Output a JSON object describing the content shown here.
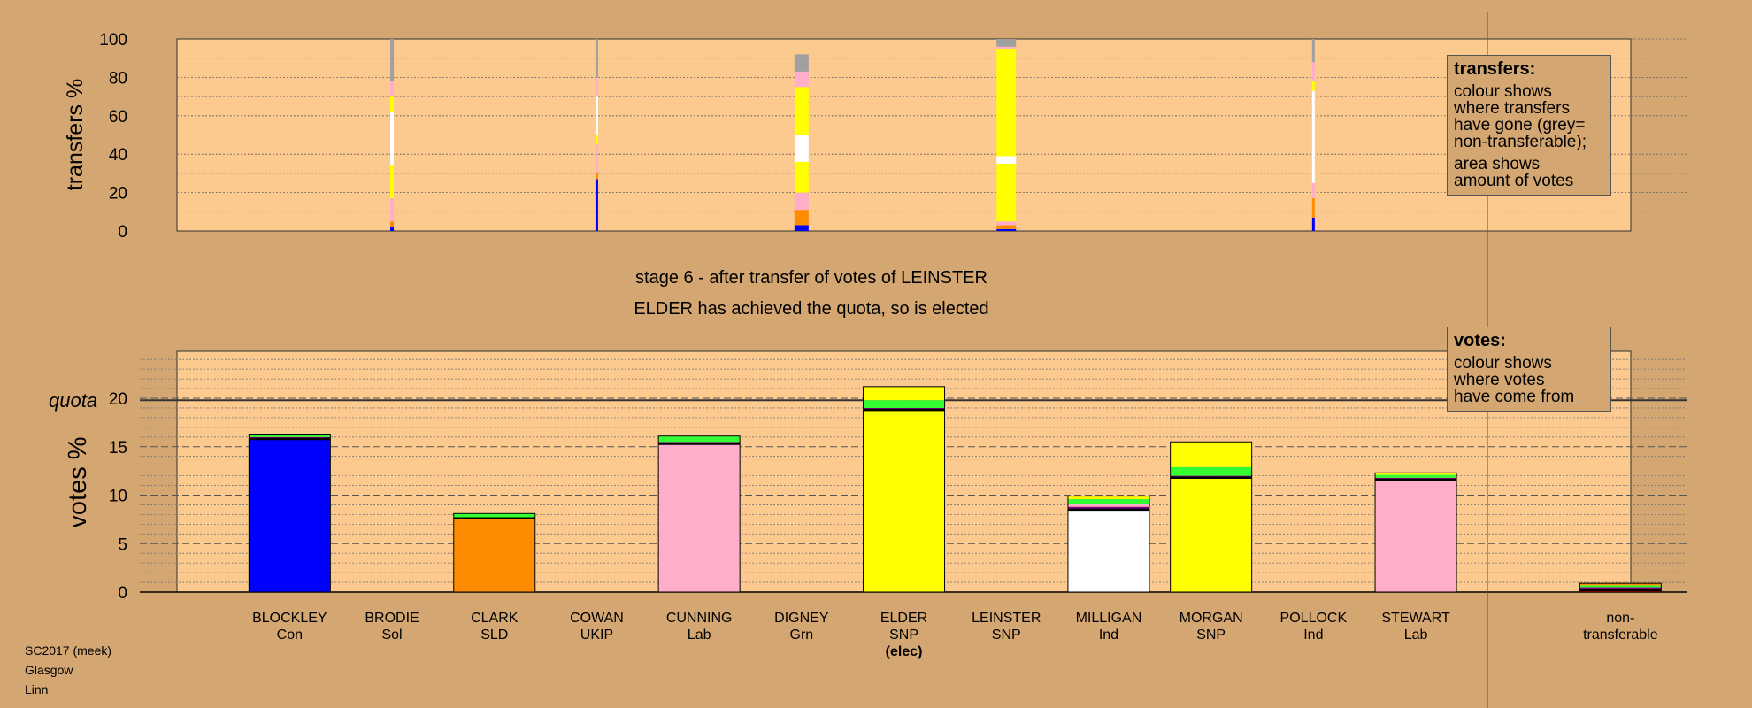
{
  "stage_title": "stage 6 - after transfer of votes of LEINSTER",
  "stage_subtitle": "ELDER has achieved the quota, so is elected",
  "quota_label": "quota",
  "legend_transfers": {
    "title": "transfers:",
    "lines_a": [
      "colour shows",
      "where transfers",
      "have gone (grey=",
      "non-transferable);"
    ],
    "lines_b": [
      "area shows",
      "amount of votes"
    ]
  },
  "legend_votes": {
    "title": "votes:",
    "lines": [
      "colour shows",
      "where votes",
      "have come from"
    ]
  },
  "credit": [
    "SC2017 (meek)",
    "Glasgow",
    "Linn"
  ],
  "colors": {
    "Con": "#0000ff",
    "SLD": "#ff8c00",
    "Lab": "#ffaec9",
    "SNP": "#ffff00",
    "Ind": "#ffffff",
    "Grn": "#33ff33",
    "Sol": "#cc0000",
    "UKIP": "#800080",
    "nontransferable": "#a0a0a0",
    "background": "#d4a672",
    "plot_bg": "#fcc98e"
  },
  "chart_data": [
    {
      "type": "bar",
      "title": "",
      "ylabel": "transfers %",
      "ylim": [
        0,
        100
      ],
      "yticks": [
        0,
        20,
        40,
        60,
        80,
        100
      ],
      "stacked": true,
      "grid": true,
      "bars": [
        {
          "candidate": "BRODIE",
          "segments": [
            {
              "party": "Con",
              "value": 2
            },
            {
              "party": "SLD",
              "value": 3
            },
            {
              "party": "Lab",
              "value": 12
            },
            {
              "party": "SNP",
              "value": 17
            },
            {
              "party": "Ind",
              "value": 28
            },
            {
              "party": "SNP",
              "value": 8
            },
            {
              "party": "Lab",
              "value": 8
            },
            {
              "party": "nontransferable",
              "value": 22
            }
          ]
        },
        {
          "candidate": "COWAN",
          "segments": [
            {
              "party": "Con",
              "value": 27
            },
            {
              "party": "SLD",
              "value": 3
            },
            {
              "party": "Lab",
              "value": 15
            },
            {
              "party": "SNP",
              "value": 5
            },
            {
              "party": "Ind",
              "value": 20
            },
            {
              "party": "Lab",
              "value": 10
            },
            {
              "party": "nontransferable",
              "value": 20
            }
          ]
        },
        {
          "candidate": "DIGNEY",
          "segments": [
            {
              "party": "Con",
              "value": 3
            },
            {
              "party": "SLD",
              "value": 8
            },
            {
              "party": "Lab",
              "value": 9
            },
            {
              "party": "SNP",
              "value": 16
            },
            {
              "party": "Ind",
              "value": 14
            },
            {
              "party": "SNP",
              "value": 25
            },
            {
              "party": "Lab",
              "value": 8
            },
            {
              "party": "nontransferable",
              "value": 9
            }
          ]
        },
        {
          "candidate": "LEINSTER",
          "segments": [
            {
              "party": "Con",
              "value": 1
            },
            {
              "party": "SLD",
              "value": 2
            },
            {
              "party": "Lab",
              "value": 2
            },
            {
              "party": "SNP",
              "value": 30
            },
            {
              "party": "Ind",
              "value": 4
            },
            {
              "party": "SNP",
              "value": 56
            },
            {
              "party": "Lab",
              "value": 1
            },
            {
              "party": "nontransferable",
              "value": 4
            }
          ]
        },
        {
          "candidate": "POLLOCK",
          "segments": [
            {
              "party": "Con",
              "value": 7
            },
            {
              "party": "SLD",
              "value": 10
            },
            {
              "party": "Lab",
              "value": 8
            },
            {
              "party": "Ind",
              "value": 48
            },
            {
              "party": "SNP",
              "value": 5
            },
            {
              "party": "Lab",
              "value": 10
            },
            {
              "party": "nontransferable",
              "value": 12
            }
          ]
        }
      ]
    },
    {
      "type": "bar",
      "title": "",
      "ylabel": "votes %",
      "ylim": [
        0,
        25
      ],
      "yticks": [
        0,
        5,
        10,
        15,
        20
      ],
      "quota": 19.8,
      "stacked": true,
      "grid": true,
      "categories": [
        "BLOCKLEY",
        "BRODIE",
        "CLARK",
        "COWAN",
        "CUNNING",
        "DIGNEY",
        "ELDER",
        "LEINSTER",
        "MILLIGAN",
        "MORGAN",
        "POLLOCK",
        "STEWART",
        "non-\ntransferable"
      ],
      "category_lines": [
        [
          "BLOCKLEY",
          "Con"
        ],
        [
          "BRODIE",
          "Sol"
        ],
        [
          "CLARK",
          "SLD"
        ],
        [
          "COWAN",
          "UKIP"
        ],
        [
          "CUNNING",
          "Lab"
        ],
        [
          "DIGNEY",
          "Grn"
        ],
        [
          "ELDER",
          "SNP",
          "(elec)"
        ],
        [
          "LEINSTER",
          "SNP"
        ],
        [
          "MILLIGAN",
          "Ind"
        ],
        [
          "MORGAN",
          "SNP"
        ],
        [
          "POLLOCK",
          "Ind"
        ],
        [
          "STEWART",
          "Lab"
        ],
        [
          "non-",
          "transferable"
        ]
      ],
      "bars": [
        {
          "candidate": "BLOCKLEY",
          "total": 16.3,
          "segments": [
            {
              "party": "Con",
              "value": 15.8
            },
            {
              "party": "UKIP",
              "value": 0.2
            },
            {
              "party": "Grn",
              "value": 0.3
            }
          ]
        },
        {
          "candidate": "BRODIE",
          "total": 0,
          "segments": []
        },
        {
          "candidate": "CLARK",
          "total": 8.1,
          "segments": [
            {
              "party": "SLD",
              "value": 7.6
            },
            {
              "party": "UKIP",
              "value": 0.1
            },
            {
              "party": "Grn",
              "value": 0.4
            }
          ]
        },
        {
          "candidate": "COWAN",
          "total": 0,
          "segments": []
        },
        {
          "candidate": "CUNNING",
          "total": 16.1,
          "segments": [
            {
              "party": "Lab",
              "value": 15.3
            },
            {
              "party": "UKIP",
              "value": 0.2
            },
            {
              "party": "Grn",
              "value": 0.6
            }
          ]
        },
        {
          "candidate": "DIGNEY",
          "total": 0,
          "segments": []
        },
        {
          "candidate": "ELDER",
          "total": 21.2,
          "segments": [
            {
              "party": "SNP",
              "value": 18.8
            },
            {
              "party": "UKIP",
              "value": 0.2
            },
            {
              "party": "Grn",
              "value": 0.8
            },
            {
              "party": "SNP",
              "value": 1.4
            }
          ]
        },
        {
          "candidate": "LEINSTER",
          "total": 0,
          "segments": []
        },
        {
          "candidate": "MILLIGAN",
          "total": 9.9,
          "segments": [
            {
              "party": "Ind",
              "value": 8.5
            },
            {
              "party": "UKIP",
              "value": 0.3
            },
            {
              "party": "Lab",
              "value": 0.3
            },
            {
              "party": "Grn",
              "value": 0.5
            },
            {
              "party": "SNP",
              "value": 0.3
            }
          ]
        },
        {
          "candidate": "MORGAN",
          "total": 15.5,
          "segments": [
            {
              "party": "SNP",
              "value": 11.8
            },
            {
              "party": "UKIP",
              "value": 0.2
            },
            {
              "party": "Grn",
              "value": 0.9
            },
            {
              "party": "SNP",
              "value": 2.6
            }
          ]
        },
        {
          "candidate": "POLLOCK",
          "total": 0,
          "segments": []
        },
        {
          "candidate": "STEWART",
          "total": 12.3,
          "segments": [
            {
              "party": "Lab",
              "value": 11.6
            },
            {
              "party": "UKIP",
              "value": 0.2
            },
            {
              "party": "Grn",
              "value": 0.3
            },
            {
              "party": "SNP",
              "value": 0.2
            }
          ]
        },
        {
          "candidate": "non-transferable",
          "total": 0.9,
          "segments": [
            {
              "party": "Sol",
              "value": 0.2
            },
            {
              "party": "UKIP",
              "value": 0.3
            },
            {
              "party": "Grn",
              "value": 0.2
            },
            {
              "party": "SLD",
              "value": 0.2
            }
          ]
        }
      ]
    }
  ]
}
